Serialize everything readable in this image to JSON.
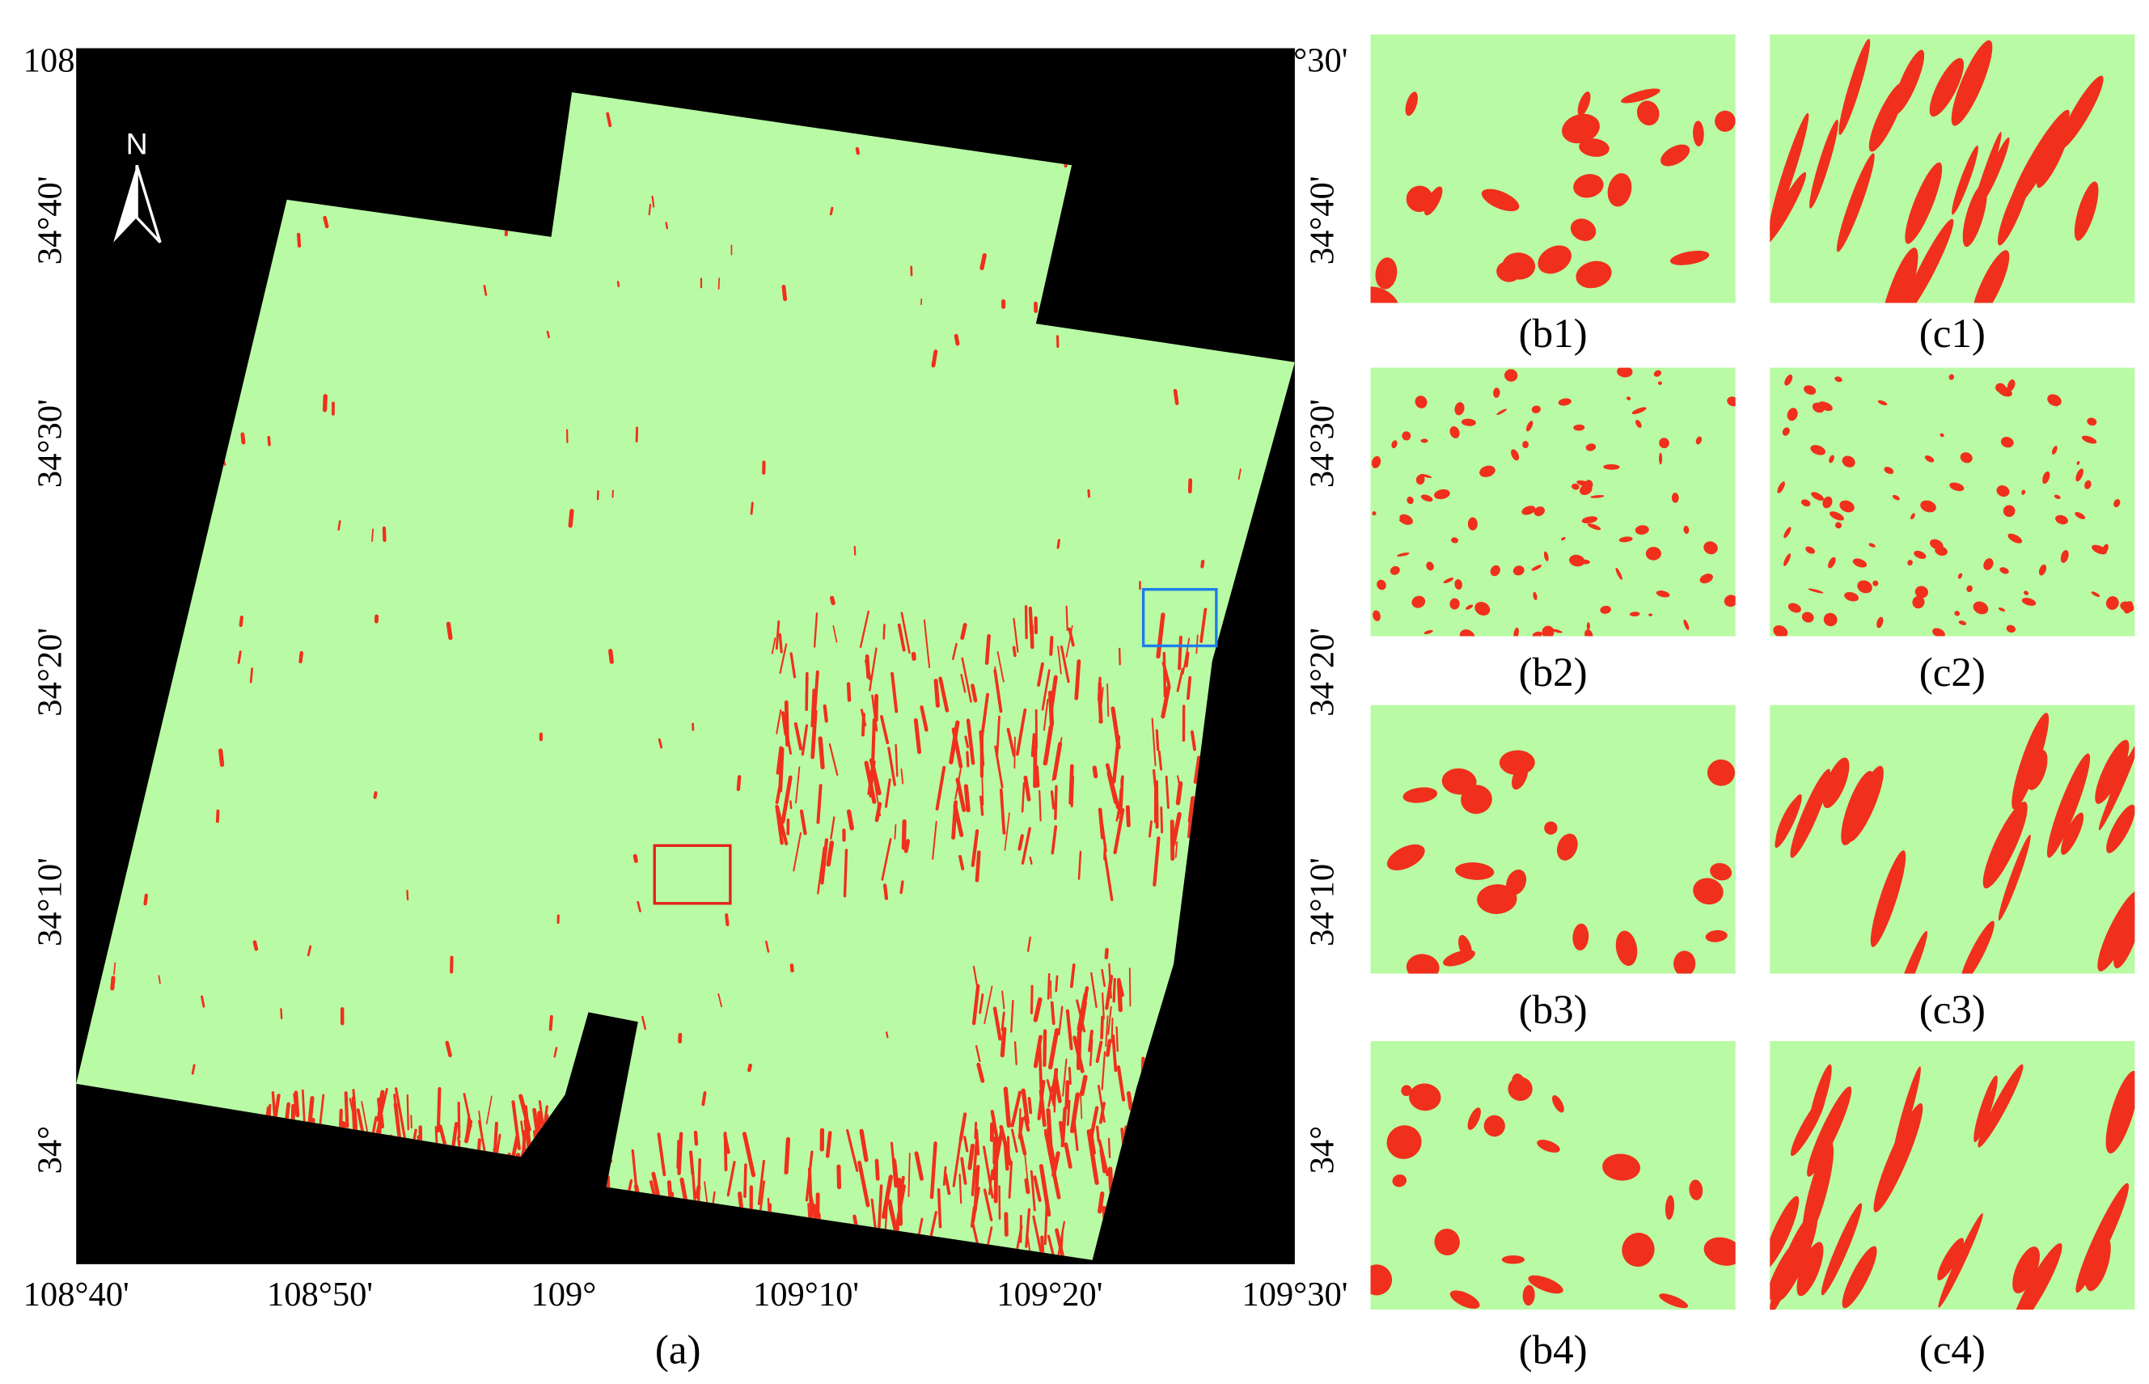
{
  "map": {
    "lon_labels": [
      "108°40'",
      "108°50'",
      "109°",
      "109°10'",
      "109°20'",
      "109°30'"
    ],
    "lat_labels": [
      "34°40'",
      "34°30'",
      "34°20'",
      "34°10'",
      "34°"
    ],
    "north": "N",
    "caption": "(a)"
  },
  "panels": [
    {
      "caption": "(b1)"
    },
    {
      "caption": "(c1)"
    },
    {
      "caption": "(b2)"
    },
    {
      "caption": "(c2)"
    },
    {
      "caption": "(b3)"
    },
    {
      "caption": "(c3)"
    },
    {
      "caption": "(b4)"
    },
    {
      "caption": "(c4)"
    }
  ]
}
